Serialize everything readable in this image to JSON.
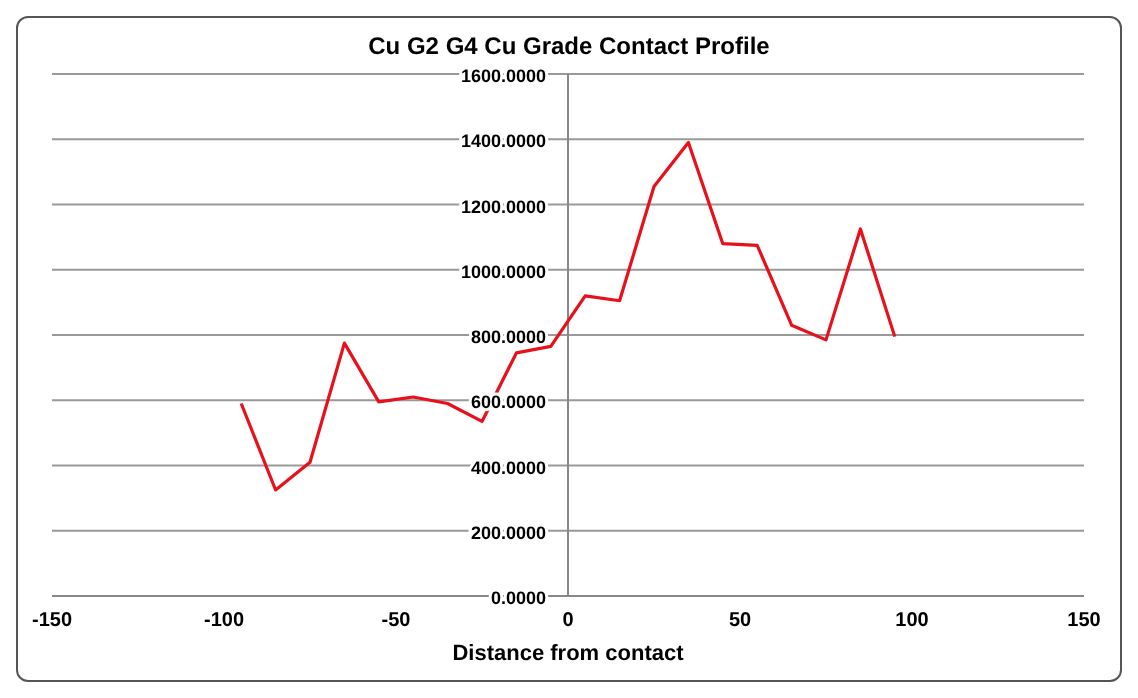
{
  "chart_data": {
    "type": "line",
    "title": "Cu G2 G4 Cu Grade Contact Profile",
    "xlabel": "Distance from contact",
    "x": [
      -95,
      -85,
      -75,
      -65,
      -55,
      -45,
      -35,
      -25,
      -15,
      -5,
      5,
      15,
      25,
      35,
      45,
      55,
      65,
      75,
      85,
      95
    ],
    "series": [
      {
        "color": "#e8101a",
        "values": [
          590,
          325,
          410,
          775,
          595,
          610,
          590,
          535,
          745,
          765,
          920,
          905,
          1255,
          1390,
          1080,
          1075,
          830,
          785,
          1125,
          795
        ]
      }
    ],
    "xlim": [
      -150,
      150
    ],
    "xticks": [
      -150,
      -100,
      -50,
      0,
      50,
      100,
      150
    ],
    "ylim": [
      0,
      1600
    ],
    "yticks": [
      {
        "value": 0,
        "label": "0.0000"
      },
      {
        "value": 200,
        "label": "200.0000"
      },
      {
        "value": 400,
        "label": "400.0000"
      },
      {
        "value": 600,
        "label": "600.0000"
      },
      {
        "value": 800,
        "label": "800.0000"
      },
      {
        "value": 1000,
        "label": "1000.0000"
      },
      {
        "value": 1200,
        "label": "1200.0000"
      },
      {
        "value": 1400,
        "label": "1400.0000"
      },
      {
        "value": 1600,
        "label": "1600.0000"
      }
    ],
    "grid": "y",
    "marker": "none",
    "line_style": "solid"
  }
}
